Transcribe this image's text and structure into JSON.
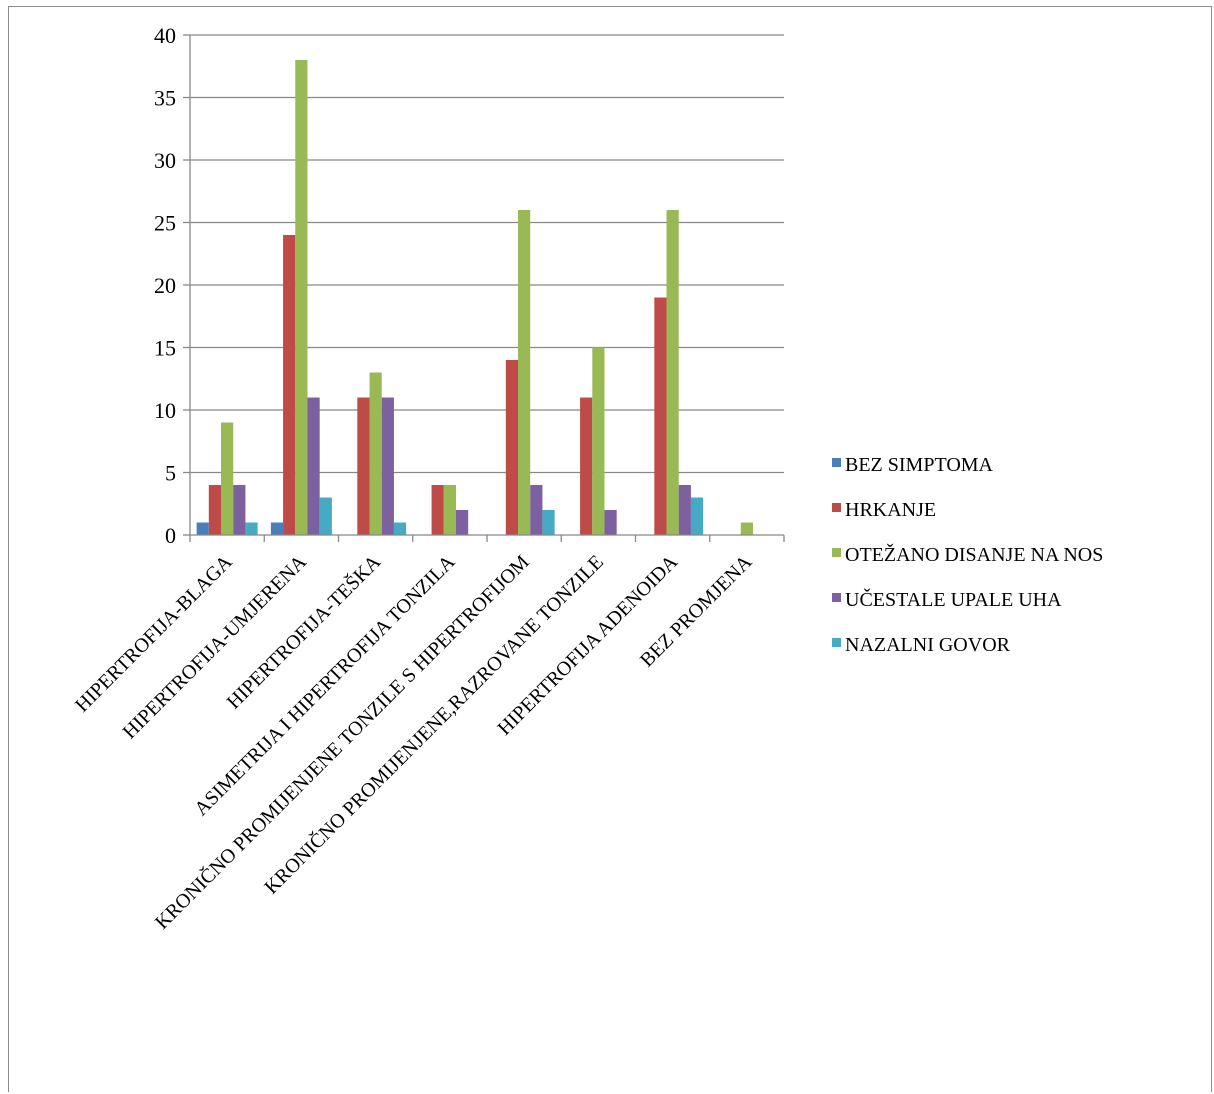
{
  "chart_data": {
    "type": "bar",
    "title": "",
    "xlabel": "",
    "ylabel": "",
    "ylim": [
      0,
      40
    ],
    "yticks": [
      0,
      5,
      10,
      15,
      20,
      25,
      30,
      35,
      40
    ],
    "grid": true,
    "legend_position": "right",
    "categories": [
      "HIPERTROFIJA-BLAGA",
      "HIPERTROFIJA-UMJERENA",
      "HIPERTROFIJA-TEŠKA",
      "ASIMETRIJA I HIPERTROFIJA TONZILA",
      "KRONIČNO PROMIJENJENE TONZILE S HIPERTROFIJOM",
      "KRONIČNO PROMIJENJENE,RAZROVANE TONZILE",
      "HIPERTROFIJA ADENOIDA",
      "BEZ PROMJENA"
    ],
    "series": [
      {
        "name": "BEZ SIMPTOMA",
        "color": "#4a7ebb",
        "values": [
          1,
          1,
          0,
          0,
          0,
          0,
          0,
          0
        ]
      },
      {
        "name": "HRKANJE",
        "color": "#be4b48",
        "values": [
          4,
          24,
          11,
          4,
          14,
          11,
          19,
          0
        ]
      },
      {
        "name": "OTEŽANO DISANJE NA NOS",
        "color": "#98b954",
        "values": [
          9,
          38,
          13,
          4,
          26,
          15,
          26,
          1
        ]
      },
      {
        "name": "UČESTALE UPALE UHA",
        "color": "#7d60a0",
        "values": [
          4,
          11,
          11,
          2,
          4,
          2,
          4,
          0
        ]
      },
      {
        "name": "NAZALNI GOVOR",
        "color": "#46aac5",
        "values": [
          1,
          3,
          1,
          0,
          2,
          0,
          3,
          0
        ]
      }
    ]
  }
}
